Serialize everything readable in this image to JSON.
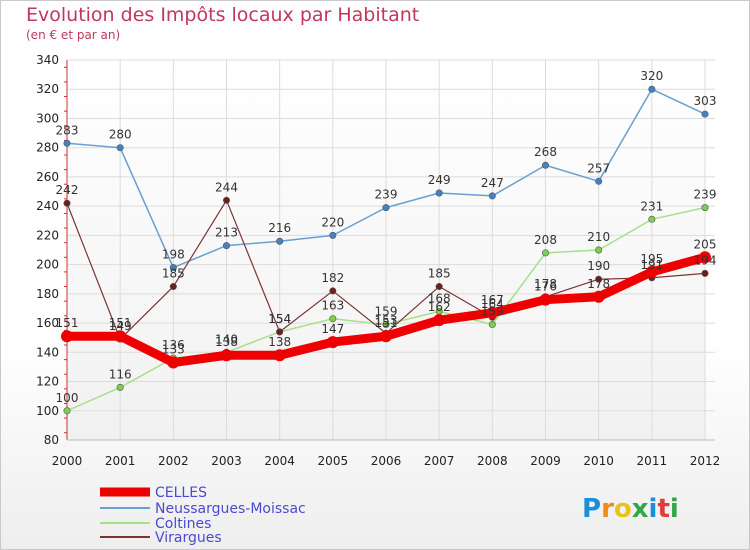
{
  "header": {
    "title": "Evolution des Impôts locaux par Habitant",
    "subtitle": "(en € et par an)"
  },
  "logo": {
    "text": "Proxiti",
    "letters": [
      "P",
      "r",
      "o",
      "x",
      "i",
      "t",
      "i"
    ],
    "colors": [
      "#1b8fd6",
      "#f08a1a",
      "#e8c31a",
      "#2fa84a",
      "#1b8fd6",
      "#e03a3a",
      "#2fa84a"
    ]
  },
  "chart_data": {
    "type": "line",
    "title": "Evolution des Impôts locaux par Habitant",
    "subtitle": "(en € et par an)",
    "x": [
      2000,
      2001,
      2002,
      2003,
      2004,
      2005,
      2006,
      2007,
      2008,
      2009,
      2010,
      2011,
      2012
    ],
    "ylim": [
      80,
      340
    ],
    "yticks": [
      80,
      100,
      120,
      140,
      160,
      180,
      200,
      220,
      240,
      260,
      280,
      300,
      320,
      340
    ],
    "grid": true,
    "legend_position": "bottom-left",
    "series": [
      {
        "name": "CELLES",
        "color": "#ee0000",
        "width": 9,
        "marker": 6,
        "values": [
          151,
          151,
          133,
          138,
          138,
          147,
          151,
          162,
          167,
          176,
          178,
          195,
          205
        ]
      },
      {
        "name": "Neussargues-Moissac",
        "color": "#6aa0cf",
        "width": 1.5,
        "marker": 3.2,
        "markerFill": "#3f84c6",
        "values": [
          283,
          280,
          198,
          213,
          216,
          220,
          239,
          249,
          247,
          268,
          257,
          320,
          303
        ]
      },
      {
        "name": "Coltines",
        "color": "#a6e08a",
        "width": 1.5,
        "marker": 3.2,
        "markerFill": "#7bd24a",
        "values": [
          100,
          116,
          136,
          140,
          154,
          163,
          159,
          168,
          159,
          208,
          210,
          231,
          239
        ]
      },
      {
        "name": "Virargues",
        "color": "#7b3535",
        "width": 1.2,
        "marker": 3.2,
        "markerFill": "#6b1f1f",
        "values": [
          242,
          149,
          185,
          244,
          154,
          182,
          153,
          185,
          164,
          178,
          190,
          191,
          194
        ]
      }
    ]
  }
}
